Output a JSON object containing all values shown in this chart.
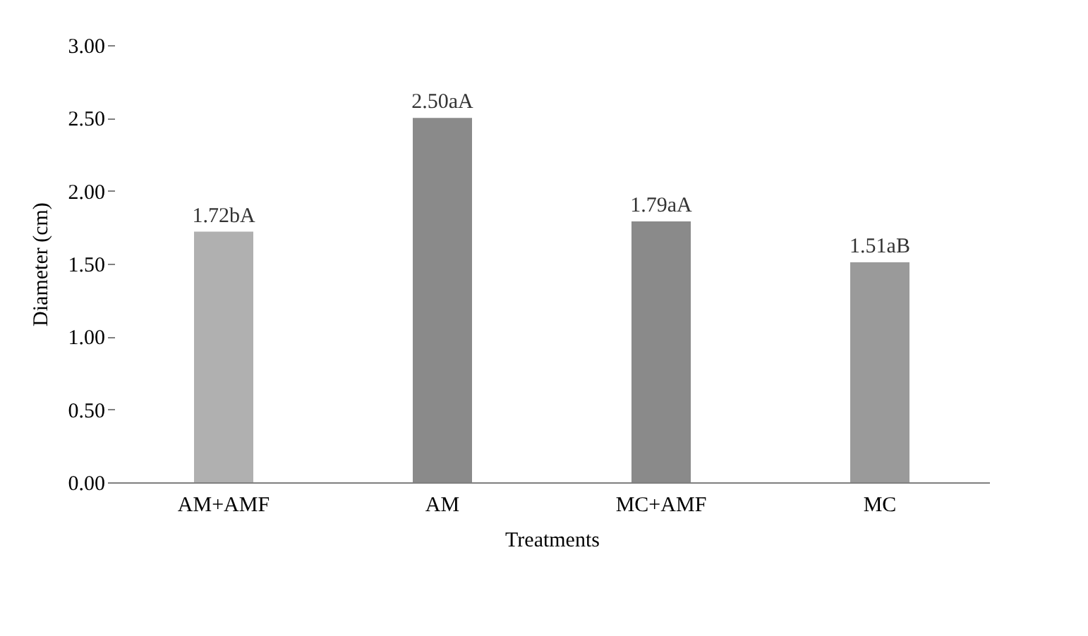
{
  "chart_data": {
    "type": "bar",
    "xlabel": "Treatments",
    "ylabel": "Diameter (cm)",
    "categories": [
      "AM+AMF",
      "AM",
      "MC+AMF",
      "MC"
    ],
    "values": [
      1.72,
      2.5,
      1.79,
      1.51
    ],
    "value_labels": [
      "1.72bA",
      "2.50aA",
      "1.79aA",
      "1.51aB"
    ],
    "colors": [
      "#b0b0b0",
      "#8a8a8a",
      "#8a8a8a",
      "#9a9a9a"
    ],
    "ylim": [
      0,
      3
    ],
    "yticks": [
      {
        "value": 0,
        "label": "0.00"
      },
      {
        "value": 0.5,
        "label": "0.50"
      },
      {
        "value": 1,
        "label": "1.00"
      },
      {
        "value": 1.5,
        "label": "1.50"
      },
      {
        "value": 2,
        "label": "2.00"
      },
      {
        "value": 2.5,
        "label": "2.50"
      },
      {
        "value": 3,
        "label": "3.00"
      }
    ],
    "grid": false
  }
}
